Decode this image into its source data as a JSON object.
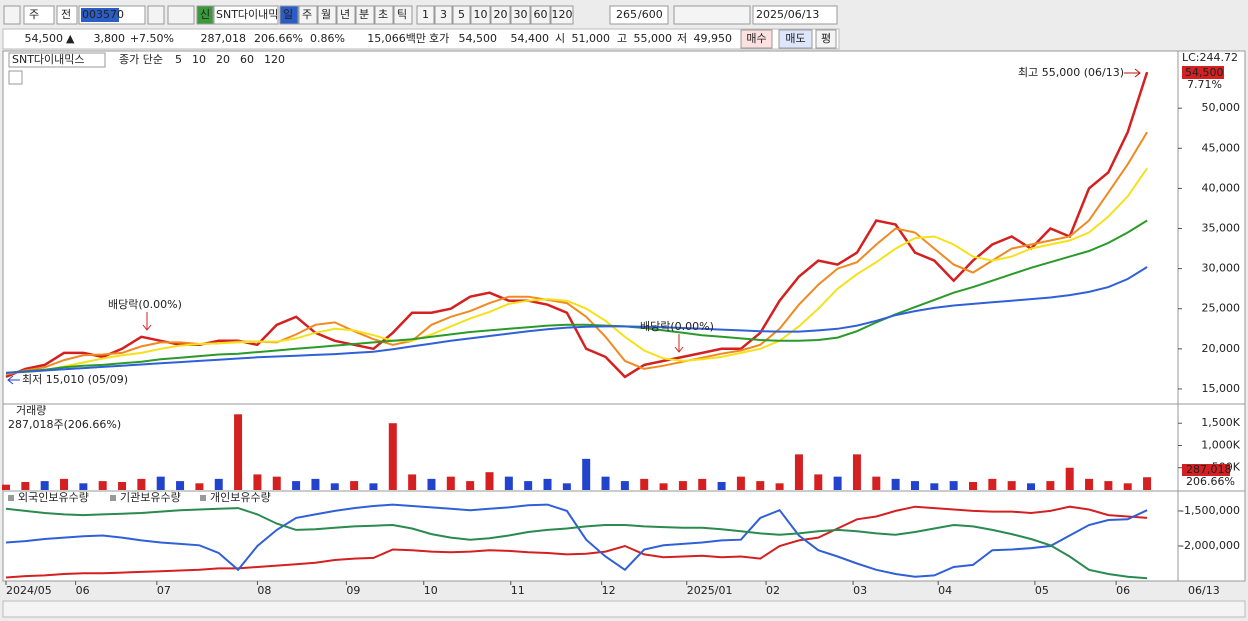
{
  "toolbar": {
    "market": "주",
    "prev": "전",
    "code": "003570",
    "new": "신",
    "name": "SNT다이내믹",
    "periods": [
      "일",
      "주",
      "월",
      "년",
      "분",
      "초",
      "틱"
    ],
    "intervals": [
      "1",
      "3",
      "5",
      "10",
      "20",
      "30",
      "60",
      "120"
    ],
    "count": "265",
    "max": "/600",
    "date": "2025/06/13"
  },
  "quote": {
    "price": "54,500",
    "arrow": "▲",
    "change": "3,800",
    "rate": "+7.50%",
    "volume": "287,018",
    "volume_ratio": "206.66%",
    "turnover": "0.86%",
    "amount": "15,066백만",
    "bid_label": "호가",
    "ask": "54,500",
    "bid": "54,400",
    "open_label": "시",
    "open": "51,000",
    "high_label": "고",
    "high": "55,000",
    "low_label": "저",
    "low": "49,950",
    "buy": "매수",
    "sell": "매도",
    "avg": "평"
  },
  "chart_data": [
    {
      "type": "line",
      "title": "SNT다이내믹스",
      "legend_title": "종가 단순",
      "lc": "LC:244.72",
      "last_label": "54,500",
      "change_label": "7.71%",
      "annotations": [
        "최고 55,000 (06/13)",
        "최저 15,010 (05/09)",
        "배당락(0.00%)",
        "배당락(0.00%)"
      ],
      "ylim": [
        13250,
        57000
      ],
      "yticks": [
        {
          "value": 15000,
          "label": "15,000"
        },
        {
          "value": 20000,
          "label": "20,000"
        },
        {
          "value": 25000,
          "label": "25,000"
        },
        {
          "value": 30000,
          "label": "30,000"
        },
        {
          "value": 35000,
          "label": "35,000"
        },
        {
          "value": 40000,
          "label": "40,000"
        },
        {
          "value": 45000,
          "label": "45,000"
        },
        {
          "value": 50000,
          "label": "50,000"
        }
      ],
      "series": [
        {
          "name": "5",
          "color": "#d42020",
          "values": [
            16500,
            17500,
            18000,
            19500,
            19500,
            19000,
            20000,
            21500,
            21000,
            20500,
            20500,
            21000,
            21000,
            20500,
            23000,
            24000,
            22000,
            21000,
            20500,
            20000,
            22000,
            24500,
            24500,
            25000,
            26500,
            27000,
            26000,
            26000,
            25500,
            24500,
            20000,
            19000,
            16500,
            18000,
            18500,
            19000,
            19500,
            20000,
            20000,
            22000,
            26000,
            29000,
            31000,
            30500,
            32000,
            36000,
            35500,
            32000,
            31000,
            28500,
            31000,
            33000,
            34000,
            32500,
            35000,
            34000,
            40000,
            42000,
            47000,
            54500
          ]
        },
        {
          "name": "10",
          "color": "#f08a20",
          "values": [
            16800,
            17300,
            17700,
            18600,
            19200,
            19300,
            19500,
            20300,
            20800,
            20800,
            20600,
            20700,
            20900,
            20900,
            20800,
            21800,
            23000,
            23300,
            22200,
            21200,
            20500,
            21000,
            23000,
            24000,
            24700,
            25700,
            26500,
            26500,
            26100,
            25700,
            24000,
            21500,
            18500,
            17500,
            17900,
            18400,
            18900,
            19400,
            19800,
            20500,
            22500,
            25500,
            28000,
            30000,
            30800,
            33000,
            35000,
            34500,
            32500,
            30500,
            29500,
            31000,
            32500,
            33000,
            33500,
            34000,
            36000,
            39500,
            43000,
            47000
          ]
        },
        {
          "name": "20",
          "color": "#f5e11a",
          "values": [
            17000,
            17100,
            17300,
            17800,
            18300,
            18800,
            19200,
            19500,
            20000,
            20400,
            20600,
            20700,
            20800,
            20900,
            20900,
            21300,
            22000,
            22500,
            22300,
            21700,
            21000,
            21000,
            21800,
            22800,
            23800,
            24600,
            25600,
            26000,
            26200,
            26000,
            25000,
            23500,
            21500,
            19800,
            18800,
            18500,
            18700,
            19000,
            19500,
            20000,
            21000,
            22800,
            25000,
            27500,
            29300,
            30800,
            32500,
            33800,
            34000,
            33000,
            31500,
            31000,
            31500,
            32500,
            33000,
            33500,
            34500,
            36500,
            39000,
            42500
          ]
        },
        {
          "name": "60",
          "color": "#2a9a2a",
          "values": [
            17000,
            17200,
            17400,
            17700,
            17900,
            18000,
            18200,
            18400,
            18700,
            18900,
            19100,
            19300,
            19400,
            19600,
            19800,
            20000,
            20200,
            20400,
            20600,
            20800,
            21000,
            21200,
            21500,
            21800,
            22100,
            22300,
            22500,
            22700,
            22900,
            23000,
            23000,
            22900,
            22800,
            22600,
            22300,
            22000,
            21700,
            21500,
            21300,
            21100,
            21000,
            21000,
            21100,
            21400,
            22200,
            23300,
            24300,
            25200,
            26100,
            27000,
            27700,
            28500,
            29300,
            30100,
            30800,
            31500,
            32200,
            33200,
            34500,
            36000
          ]
        },
        {
          "name": "120",
          "color": "#3060d8",
          "values": [
            17000,
            17150,
            17300,
            17450,
            17600,
            17750,
            17900,
            18050,
            18200,
            18350,
            18500,
            18650,
            18800,
            18950,
            19050,
            19150,
            19250,
            19350,
            19500,
            19650,
            19950,
            20300,
            20650,
            21000,
            21300,
            21600,
            21900,
            22200,
            22450,
            22650,
            22750,
            22800,
            22800,
            22750,
            22700,
            22600,
            22500,
            22400,
            22300,
            22200,
            22150,
            22150,
            22300,
            22500,
            22900,
            23500,
            24200,
            24700,
            25100,
            25400,
            25600,
            25800,
            26000,
            26200,
            26400,
            26700,
            27100,
            27700,
            28700,
            30200
          ]
        }
      ]
    },
    {
      "type": "bar",
      "title": "거래량",
      "subtitle": "287,018주(206.66%)",
      "last_label": "287,018",
      "ratio_label": "206.66%",
      "ylim": [
        0,
        1909000
      ],
      "yticks": [
        {
          "value": 500000,
          "label": "500K"
        },
        {
          "value": 1000000,
          "label": "1,000K"
        },
        {
          "value": 1500000,
          "label": "1,500K"
        }
      ],
      "values": [
        120000,
        180000,
        200000,
        250000,
        150000,
        200000,
        180000,
        250000,
        300000,
        200000,
        150000,
        250000,
        1700000,
        350000,
        300000,
        200000,
        250000,
        150000,
        200000,
        150000,
        1500000,
        350000,
        250000,
        300000,
        200000,
        400000,
        300000,
        200000,
        250000,
        150000,
        700000,
        300000,
        200000,
        250000,
        150000,
        200000,
        250000,
        180000,
        300000,
        200000,
        150000,
        800000,
        350000,
        300000,
        800000,
        300000,
        250000,
        200000,
        150000,
        200000,
        180000,
        250000,
        200000,
        150000,
        200000,
        500000,
        250000,
        200000,
        150000,
        287018
      ],
      "colors": [
        "#d42020",
        "#d42020",
        "#2244cc",
        "#d42020",
        "#2244cc",
        "#d42020",
        "#d42020",
        "#d42020",
        "#2244cc",
        "#2244cc",
        "#d42020",
        "#2244cc",
        "#d42020",
        "#d42020",
        "#d42020",
        "#2244cc",
        "#2244cc",
        "#2244cc",
        "#d42020",
        "#2244cc",
        "#d42020",
        "#d42020",
        "#2244cc",
        "#d42020",
        "#d42020",
        "#d42020",
        "#2244cc",
        "#2244cc",
        "#2244cc",
        "#2244cc",
        "#2244cc",
        "#2244cc",
        "#2244cc",
        "#d42020",
        "#d42020",
        "#d42020",
        "#d42020",
        "#2244cc",
        "#d42020",
        "#d42020",
        "#d42020",
        "#d42020",
        "#d42020",
        "#2244cc",
        "#d42020",
        "#d42020",
        "#2244cc",
        "#2244cc",
        "#2244cc",
        "#2244cc",
        "#d42020",
        "#d42020",
        "#d42020",
        "#2244cc",
        "#d42020",
        "#d42020",
        "#d42020",
        "#d42020",
        "#d42020",
        "#d42020"
      ]
    },
    {
      "type": "line",
      "ylim": [
        -2485000,
        -1230000
      ],
      "yticks": [
        {
          "value": -1500000,
          "label": "-1,500,000"
        },
        {
          "value": -2000000,
          "label": "-2,000,000"
        }
      ],
      "xlim": [
        0,
        60.6
      ],
      "xticks": [
        {
          "value": 0,
          "label": "2024/05"
        },
        {
          "value": 3.6,
          "label": "06"
        },
        {
          "value": 7.8,
          "label": "07"
        },
        {
          "value": 13,
          "label": "08"
        },
        {
          "value": 17.6,
          "label": "09"
        },
        {
          "value": 21.6,
          "label": "10"
        },
        {
          "value": 26.1,
          "label": "11"
        },
        {
          "value": 30.8,
          "label": "12"
        },
        {
          "value": 35.2,
          "label": "2025/01"
        },
        {
          "value": 39.3,
          "label": "02"
        },
        {
          "value": 43.8,
          "label": "03"
        },
        {
          "value": 48.2,
          "label": "04"
        },
        {
          "value": 53.2,
          "label": "05"
        },
        {
          "value": 57.4,
          "label": "06"
        }
      ],
      "last_date": "06/13",
      "series": [
        {
          "name": "외국인보유수량",
          "color": "#d42020",
          "values": [
            -2450000,
            -2430000,
            -2420000,
            -2400000,
            -2390000,
            -2390000,
            -2380000,
            -2370000,
            -2360000,
            -2350000,
            -2340000,
            -2320000,
            -2320000,
            -2300000,
            -2280000,
            -2260000,
            -2240000,
            -2200000,
            -2180000,
            -2170000,
            -2050000,
            -2060000,
            -2080000,
            -2090000,
            -2080000,
            -2060000,
            -2070000,
            -2090000,
            -2100000,
            -2120000,
            -2110000,
            -2080000,
            -2000000,
            -2120000,
            -2160000,
            -2150000,
            -2140000,
            -2160000,
            -2150000,
            -2180000,
            -2000000,
            -1920000,
            -1880000,
            -1750000,
            -1620000,
            -1580000,
            -1500000,
            -1440000,
            -1460000,
            -1480000,
            -1500000,
            -1510000,
            -1510000,
            -1530000,
            -1500000,
            -1440000,
            -1480000,
            -1560000,
            -1580000,
            -1600000
          ]
        },
        {
          "name": "기관보유수량",
          "color": "#3060d8",
          "values": [
            -1950000,
            -1930000,
            -1900000,
            -1880000,
            -1860000,
            -1850000,
            -1880000,
            -1920000,
            -1950000,
            -1970000,
            -1990000,
            -2100000,
            -2340000,
            -2000000,
            -1770000,
            -1600000,
            -1550000,
            -1500000,
            -1460000,
            -1430000,
            -1410000,
            -1430000,
            -1450000,
            -1470000,
            -1490000,
            -1470000,
            -1450000,
            -1420000,
            -1410000,
            -1500000,
            -1910000,
            -2150000,
            -2340000,
            -2050000,
            -1990000,
            -1970000,
            -1950000,
            -1920000,
            -1910000,
            -1600000,
            -1490000,
            -1850000,
            -2060000,
            -2150000,
            -2250000,
            -2340000,
            -2400000,
            -2440000,
            -2420000,
            -2300000,
            -2270000,
            -2060000,
            -2050000,
            -2030000,
            -2000000,
            -1850000,
            -1700000,
            -1630000,
            -1620000,
            -1490000
          ]
        },
        {
          "name": "개인보유수량",
          "color": "#2a8a50",
          "values": [
            -1470000,
            -1500000,
            -1530000,
            -1550000,
            -1560000,
            -1550000,
            -1540000,
            -1530000,
            -1510000,
            -1490000,
            -1480000,
            -1470000,
            -1460000,
            -1550000,
            -1680000,
            -1770000,
            -1760000,
            -1740000,
            -1720000,
            -1710000,
            -1700000,
            -1750000,
            -1830000,
            -1880000,
            -1910000,
            -1890000,
            -1850000,
            -1800000,
            -1770000,
            -1750000,
            -1720000,
            -1700000,
            -1700000,
            -1720000,
            -1730000,
            -1740000,
            -1740000,
            -1760000,
            -1790000,
            -1820000,
            -1840000,
            -1820000,
            -1790000,
            -1770000,
            -1790000,
            -1820000,
            -1840000,
            -1800000,
            -1750000,
            -1700000,
            -1720000,
            -1770000,
            -1830000,
            -1900000,
            -1990000,
            -2150000,
            -2340000,
            -2400000,
            -2440000,
            -2460000
          ]
        }
      ]
    }
  ]
}
